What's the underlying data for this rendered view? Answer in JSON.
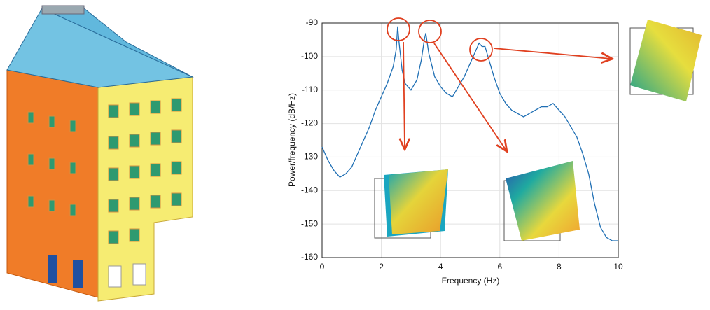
{
  "chart_data": {
    "type": "line",
    "xlabel": "Frequency (Hz)",
    "ylabel": "Power/frequency (dB/Hz)",
    "x": [
      0,
      0.2,
      0.4,
      0.6,
      0.8,
      1.0,
      1.2,
      1.4,
      1.6,
      1.8,
      2.0,
      2.2,
      2.4,
      2.5,
      2.55,
      2.6,
      2.7,
      2.8,
      3.0,
      3.2,
      3.35,
      3.45,
      3.5,
      3.6,
      3.8,
      4.0,
      4.2,
      4.4,
      4.6,
      4.8,
      5.0,
      5.2,
      5.3,
      5.4,
      5.5,
      5.6,
      5.8,
      6.0,
      6.2,
      6.4,
      6.6,
      6.8,
      7.0,
      7.2,
      7.4,
      7.6,
      7.8,
      8.0,
      8.2,
      8.4,
      8.6,
      8.8,
      9.0,
      9.2,
      9.4,
      9.6,
      9.8,
      10
    ],
    "series": [
      {
        "color": "#1f6fb4",
        "values": [
          -127,
          -131,
          -134,
          -136,
          -135,
          -133,
          -129,
          -125,
          -121,
          -116,
          -112,
          -108,
          -103,
          -98,
          -91,
          -96,
          -104,
          -108,
          -110,
          -107,
          -101,
          -95,
          -93,
          -99,
          -106,
          -109,
          -111,
          -112,
          -109,
          -106,
          -102,
          -98,
          -96,
          -97,
          -97,
          -100,
          -106,
          -111,
          -114,
          -116,
          -117,
          -118,
          -117,
          -116,
          -115,
          -115,
          -114,
          -116,
          -118,
          -121,
          -124,
          -129,
          -135,
          -144,
          -151,
          -154,
          -155,
          -155
        ]
      }
    ],
    "xlim": [
      0,
      10
    ],
    "xticks": [
      0,
      2,
      4,
      6,
      8,
      10
    ],
    "ylim": [
      -160,
      -90
    ],
    "yticks": [
      -160,
      -150,
      -140,
      -130,
      -120,
      -110,
      -100,
      -90
    ],
    "grid": true
  }
}
